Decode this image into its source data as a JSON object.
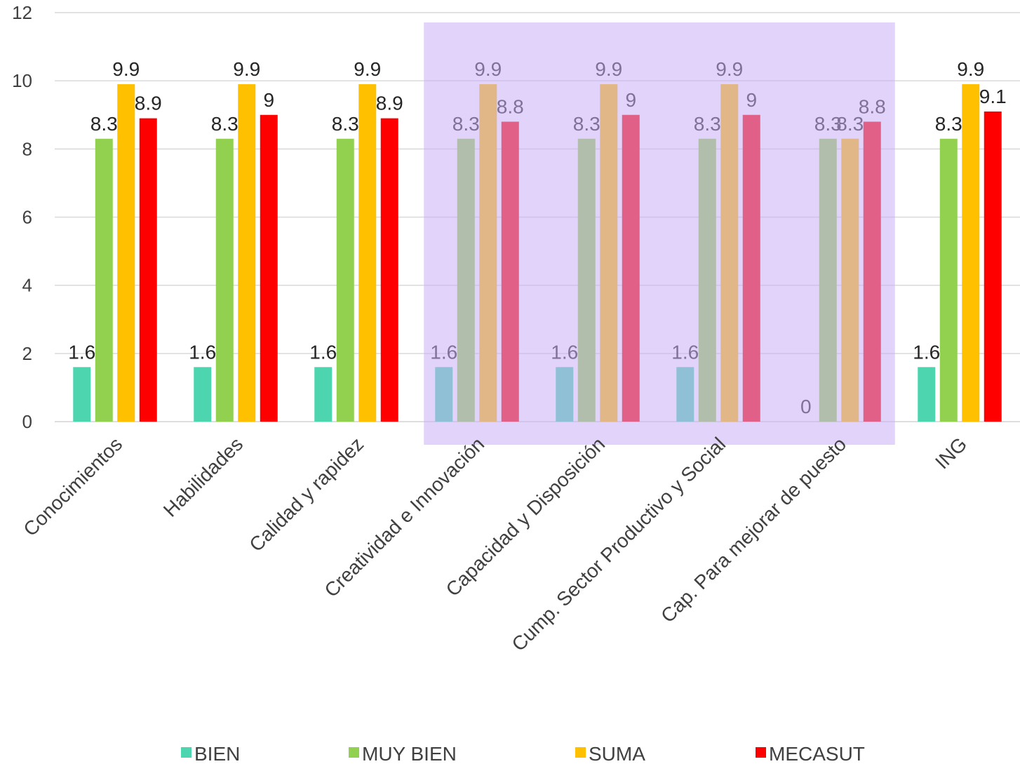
{
  "chart_data": {
    "type": "bar",
    "title": "",
    "xlabel": "",
    "ylabel": "",
    "ylim": [
      0,
      12
    ],
    "yticks": [
      0,
      2,
      4,
      6,
      8,
      10,
      12
    ],
    "grid": true,
    "legend_position": "bottom",
    "categories": [
      "Conocimientos",
      "Habilidades",
      "Calidad y rapidez",
      "Creatividad e Innovación",
      "Capacidad y Disposición",
      "Cump. Sector Productivo y Social",
      "Cap. Para mejorar de puesto",
      "ING"
    ],
    "series": [
      {
        "name": "BIEN",
        "color": "#4dd5b0",
        "values": [
          1.6,
          1.6,
          1.6,
          1.6,
          1.6,
          1.6,
          0,
          1.6
        ]
      },
      {
        "name": "MUY BIEN",
        "color": "#92d050",
        "values": [
          8.3,
          8.3,
          8.3,
          8.3,
          8.3,
          8.3,
          8.3,
          8.3
        ]
      },
      {
        "name": "SUMA",
        "color": "#ffc000",
        "values": [
          9.9,
          9.9,
          9.9,
          9.9,
          9.9,
          9.9,
          8.3,
          9.9
        ]
      },
      {
        "name": "MECASUT",
        "color": "#ff0000",
        "values": [
          8.9,
          9,
          8.9,
          8.8,
          9,
          9,
          8.8,
          9.1
        ]
      }
    ],
    "highlight": {
      "from_category": 3,
      "to_category": 6,
      "color": "#c9aef5",
      "opacity": 0.55
    }
  }
}
